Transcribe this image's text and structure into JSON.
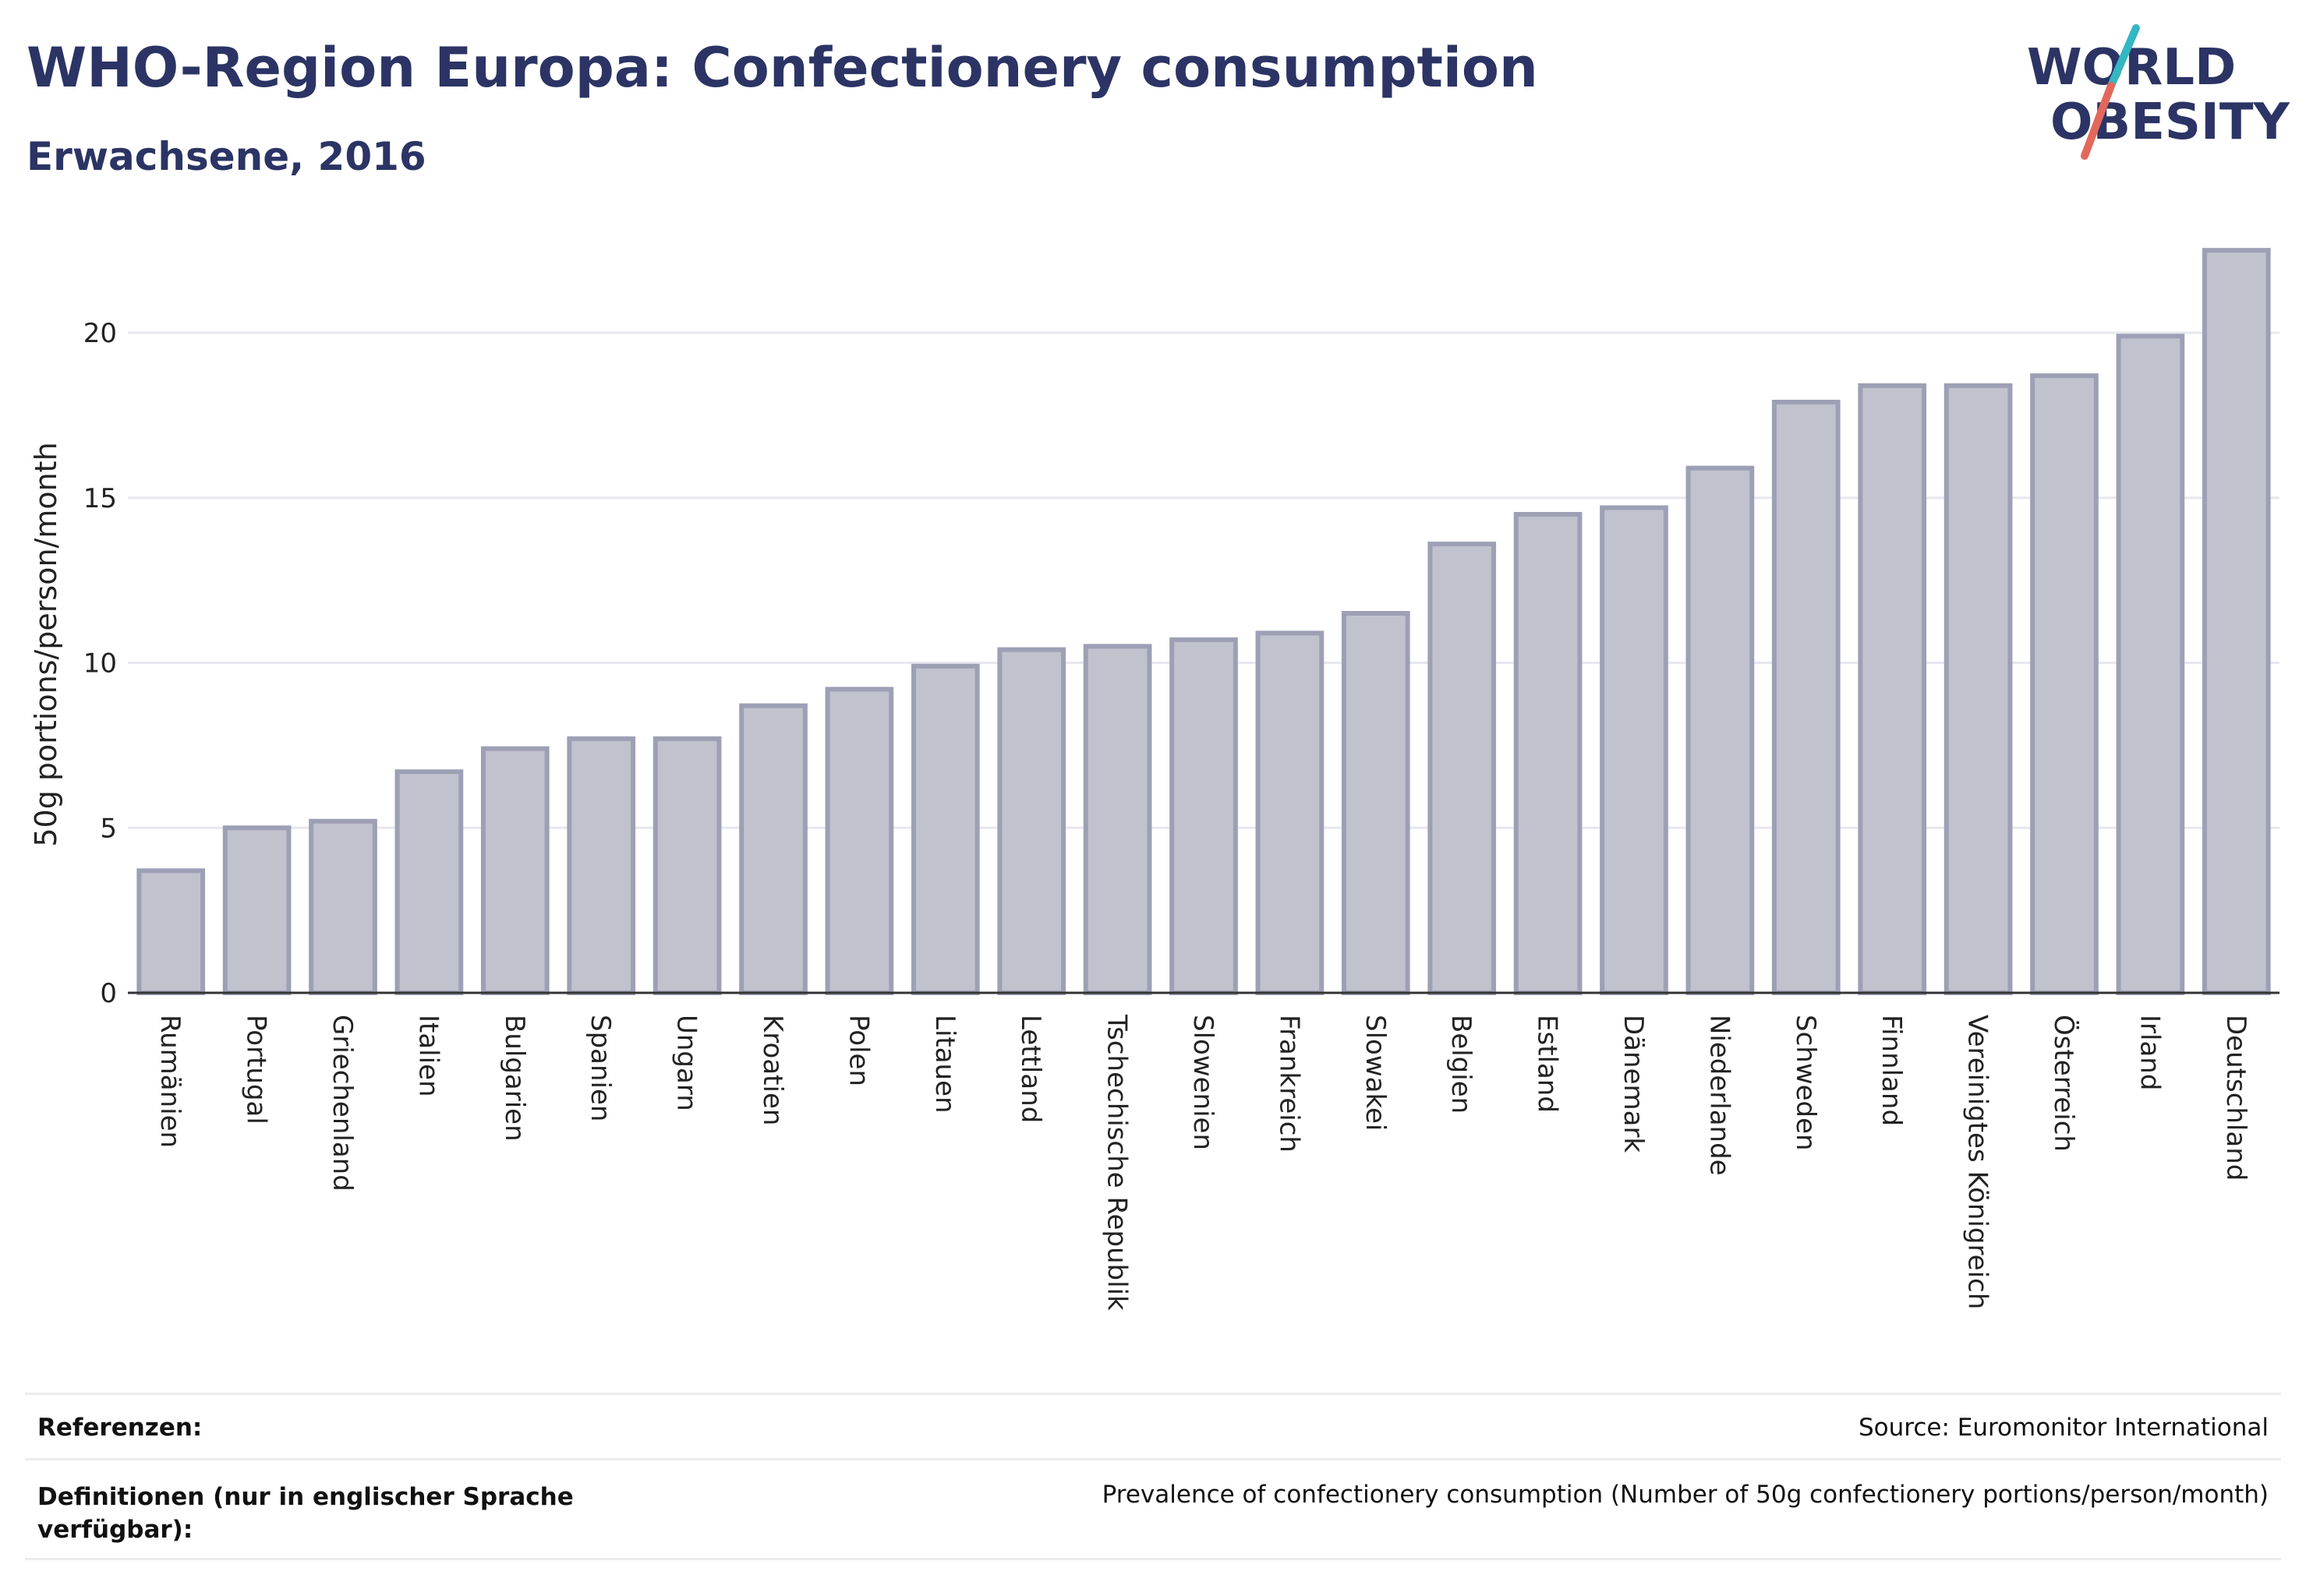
{
  "header": {
    "title": "WHO-Region Europa: Confectionery consumption",
    "subtitle": "Erwachsene, 2016"
  },
  "logo": {
    "line1": "WORLD",
    "line2": "OBESITY",
    "accent_colors": [
      "#33b7c2",
      "#e2685c"
    ]
  },
  "chart_data": {
    "type": "bar",
    "ylabel": "50g portions/person/month",
    "ylim": [
      0,
      23
    ],
    "yticks": [
      0,
      5,
      10,
      15,
      20
    ],
    "grid": true,
    "bar_color": "#c0c2ce",
    "bar_border_color": "#9da0b5",
    "categories": [
      "Rumänien",
      "Portugal",
      "Griechenland",
      "Italien",
      "Bulgarien",
      "Spanien",
      "Ungarn",
      "Kroatien",
      "Polen",
      "Litauen",
      "Lettland",
      "Tschechische Republik",
      "Slowenien",
      "Frankreich",
      "Slowakei",
      "Belgien",
      "Estland",
      "Dänemark",
      "Niederlande",
      "Schweden",
      "Finnland",
      "Vereinigtes Königreich",
      "Österreich",
      "Irland",
      "Deutschland"
    ],
    "values": [
      3.7,
      5.0,
      5.2,
      6.7,
      7.4,
      7.7,
      7.7,
      8.7,
      9.2,
      9.9,
      10.4,
      10.5,
      10.7,
      10.9,
      11.5,
      13.6,
      14.5,
      14.7,
      15.9,
      17.9,
      18.4,
      18.4,
      18.7,
      19.9,
      22.5
    ]
  },
  "references": {
    "sources_label": "Referenzen:",
    "sources_value": "Source: Euromonitor International",
    "definitions_label": "Definitionen (nur in englischer Sprache verfügbar):",
    "definitions_value": "Prevalence of confectionery consumption (Number of 50g confectionery portions/person/month)"
  }
}
